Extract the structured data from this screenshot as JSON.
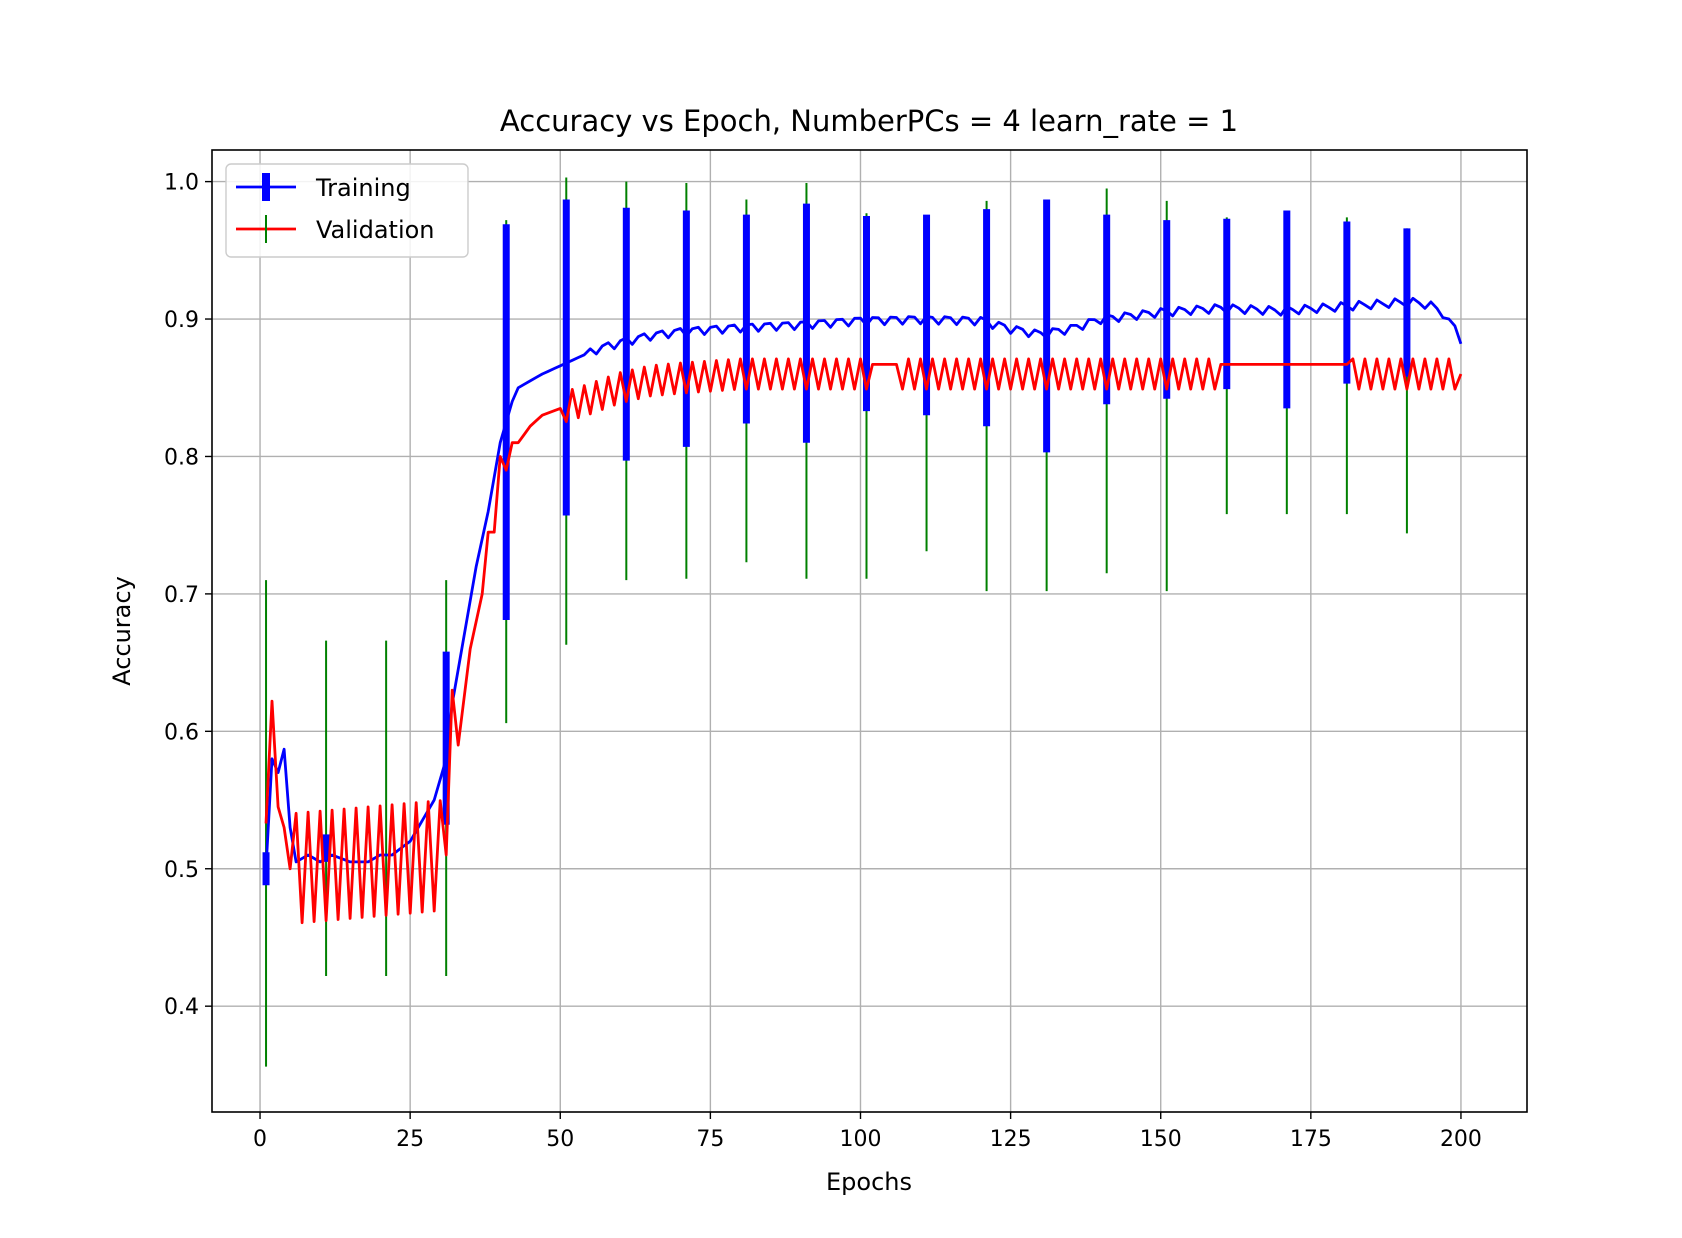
{
  "chart_data": {
    "type": "line",
    "title": "Accuracy vs Epoch, NumberPCs = 4 learn_rate = 1",
    "xlabel": "Epochs",
    "ylabel": "Accuracy",
    "xlim": [
      -8,
      211
    ],
    "ylim": [
      0.323,
      1.023
    ],
    "xticks": [
      0,
      25,
      50,
      75,
      100,
      125,
      150,
      175,
      200
    ],
    "yticks": [
      0.4,
      0.5,
      0.6,
      0.7,
      0.8,
      0.9,
      1.0
    ],
    "grid": true,
    "legend": {
      "placement": "upper-left",
      "entries": [
        {
          "label": "Training",
          "color": "#0000ff"
        },
        {
          "label": "Validation",
          "color": "#ff0000"
        }
      ]
    },
    "colors": {
      "training": "#0000ff",
      "validation": "#ff0000",
      "validation_error": "#008000",
      "grid": "#b0b0b0"
    },
    "training_anchors": [
      [
        1,
        0.5
      ],
      [
        2,
        0.58
      ],
      [
        3,
        0.57
      ],
      [
        4,
        0.587
      ],
      [
        5,
        0.53
      ],
      [
        6,
        0.505
      ],
      [
        8,
        0.51
      ],
      [
        10,
        0.505
      ],
      [
        12,
        0.51
      ],
      [
        15,
        0.505
      ],
      [
        18,
        0.505
      ],
      [
        20,
        0.51
      ],
      [
        22,
        0.51
      ],
      [
        25,
        0.52
      ],
      [
        27,
        0.535
      ],
      [
        29,
        0.55
      ],
      [
        31,
        0.58
      ],
      [
        32,
        0.62
      ],
      [
        34,
        0.67
      ],
      [
        36,
        0.72
      ],
      [
        38,
        0.76
      ],
      [
        40,
        0.81
      ],
      [
        41,
        0.825
      ],
      [
        42,
        0.84
      ],
      [
        43,
        0.85
      ],
      [
        45,
        0.855
      ],
      [
        47,
        0.86
      ],
      [
        50,
        0.866
      ],
      [
        53,
        0.872
      ],
      [
        56,
        0.878
      ],
      [
        60,
        0.883
      ],
      [
        65,
        0.888
      ],
      [
        70,
        0.891
      ],
      [
        80,
        0.894
      ],
      [
        90,
        0.896
      ],
      [
        100,
        0.899
      ],
      [
        110,
        0.9
      ],
      [
        120,
        0.899
      ],
      [
        125,
        0.893
      ],
      [
        130,
        0.889
      ],
      [
        135,
        0.893
      ],
      [
        140,
        0.9
      ],
      [
        150,
        0.905
      ],
      [
        160,
        0.908
      ],
      [
        170,
        0.906
      ],
      [
        180,
        0.909
      ],
      [
        190,
        0.912
      ],
      [
        193,
        0.912
      ],
      [
        196,
        0.908
      ],
      [
        198,
        0.9
      ],
      [
        199,
        0.895
      ],
      [
        200,
        0.882
      ]
    ],
    "validation_anchors": [
      [
        1,
        0.533
      ],
      [
        2,
        0.622
      ],
      [
        3,
        0.545
      ],
      [
        4,
        0.53
      ],
      [
        5,
        0.5
      ],
      [
        31,
        0.51
      ],
      [
        32,
        0.63
      ],
      [
        33,
        0.59
      ],
      [
        35,
        0.66
      ],
      [
        37,
        0.7
      ],
      [
        38,
        0.745
      ],
      [
        39,
        0.745
      ],
      [
        40,
        0.8
      ],
      [
        41,
        0.79
      ],
      [
        42,
        0.81
      ],
      [
        43,
        0.81
      ],
      [
        45,
        0.822
      ],
      [
        47,
        0.83
      ],
      [
        50,
        0.835
      ],
      [
        55,
        0.842
      ],
      [
        60,
        0.85
      ],
      [
        65,
        0.855
      ],
      [
        70,
        0.857
      ],
      [
        80,
        0.86
      ],
      [
        200,
        0.86
      ]
    ],
    "validation_flat": [
      {
        "from": 102,
        "to": 106,
        "value": 0.867
      },
      {
        "from": 160,
        "to": 181,
        "value": 0.867
      }
    ],
    "validation_oscillation": [
      {
        "from": 5,
        "to": 31,
        "amplitude": 0.04
      },
      {
        "from": 50,
        "to": 200,
        "amplitude": 0.011
      }
    ],
    "training_error_bars": [
      {
        "x": 1,
        "y": 0.5,
        "err": 0.012
      },
      {
        "x": 11,
        "y": 0.515,
        "err": 0.01
      },
      {
        "x": 31,
        "y": 0.595,
        "err": 0.063
      },
      {
        "x": 41,
        "y": 0.825,
        "err": 0.144
      },
      {
        "x": 51,
        "y": 0.872,
        "err": 0.115
      },
      {
        "x": 61,
        "y": 0.889,
        "err": 0.092
      },
      {
        "x": 71,
        "y": 0.893,
        "err": 0.086
      },
      {
        "x": 81,
        "y": 0.9,
        "err": 0.076
      },
      {
        "x": 91,
        "y": 0.897,
        "err": 0.087
      },
      {
        "x": 101,
        "y": 0.904,
        "err": 0.071
      },
      {
        "x": 111,
        "y": 0.903,
        "err": 0.073
      },
      {
        "x": 121,
        "y": 0.901,
        "err": 0.079
      },
      {
        "x": 131,
        "y": 0.895,
        "err": 0.092
      },
      {
        "x": 141,
        "y": 0.907,
        "err": 0.069
      },
      {
        "x": 151,
        "y": 0.907,
        "err": 0.065
      },
      {
        "x": 161,
        "y": 0.911,
        "err": 0.062
      },
      {
        "x": 171,
        "y": 0.907,
        "err": 0.072
      },
      {
        "x": 181,
        "y": 0.912,
        "err": 0.059
      },
      {
        "x": 191,
        "y": 0.912,
        "err": 0.054
      }
    ],
    "validation_error_bars": [
      {
        "x": 1,
        "y": 0.533,
        "err": 0.177
      },
      {
        "x": 11,
        "y": 0.544,
        "err": 0.122
      },
      {
        "x": 21,
        "y": 0.544,
        "err": 0.122
      },
      {
        "x": 31,
        "y": 0.566,
        "err": 0.144
      },
      {
        "x": 41,
        "y": 0.789,
        "err": 0.183
      },
      {
        "x": 51,
        "y": 0.833,
        "err": 0.17
      },
      {
        "x": 61,
        "y": 0.855,
        "err": 0.145
      },
      {
        "x": 71,
        "y": 0.855,
        "err": 0.144
      },
      {
        "x": 81,
        "y": 0.855,
        "err": 0.132
      },
      {
        "x": 91,
        "y": 0.855,
        "err": 0.144
      },
      {
        "x": 101,
        "y": 0.844,
        "err": 0.133
      },
      {
        "x": 111,
        "y": 0.844,
        "err": 0.113
      },
      {
        "x": 121,
        "y": 0.844,
        "err": 0.142
      },
      {
        "x": 131,
        "y": 0.844,
        "err": 0.142
      },
      {
        "x": 141,
        "y": 0.855,
        "err": 0.14
      },
      {
        "x": 151,
        "y": 0.844,
        "err": 0.142
      },
      {
        "x": 161,
        "y": 0.866,
        "err": 0.108
      },
      {
        "x": 171,
        "y": 0.866,
        "err": 0.108
      },
      {
        "x": 181,
        "y": 0.866,
        "err": 0.108
      },
      {
        "x": 191,
        "y": 0.855,
        "err": 0.111
      }
    ]
  }
}
